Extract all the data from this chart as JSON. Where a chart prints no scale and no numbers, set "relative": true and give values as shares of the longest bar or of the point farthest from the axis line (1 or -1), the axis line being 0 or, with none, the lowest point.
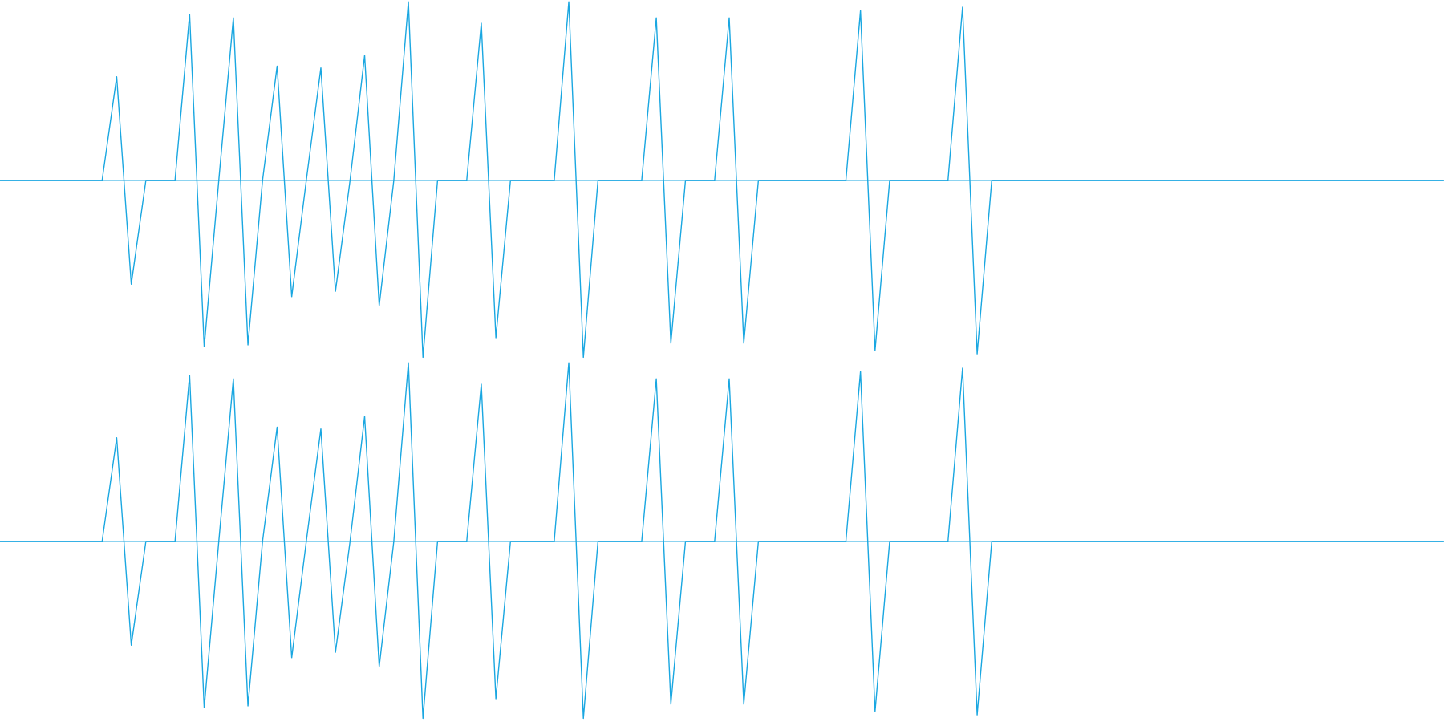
{
  "chart_data": [
    {
      "type": "line",
      "relative": true,
      "color": "#1aa7e1",
      "categories": [
        null,
        null,
        null,
        null,
        null,
        null,
        null,
        null,
        null,
        null,
        null,
        null,
        null,
        null,
        null,
        null,
        null,
        null,
        null,
        null,
        null,
        null,
        null,
        null,
        null,
        null,
        null,
        null,
        null,
        null,
        null,
        null,
        null,
        null,
        null,
        null,
        null,
        null,
        null,
        null,
        null,
        null,
        null,
        null,
        null,
        null,
        null,
        null,
        null,
        null,
        null,
        null,
        null,
        null,
        null,
        null,
        null,
        null,
        null,
        null,
        null,
        null,
        null,
        null,
        null,
        null,
        null,
        null,
        null,
        null,
        null,
        null,
        null,
        null,
        null,
        null,
        null,
        null,
        null,
        null,
        null,
        null,
        null,
        null,
        null,
        null,
        null,
        null,
        null,
        null,
        null,
        null,
        null,
        null,
        null,
        null,
        null,
        null,
        null,
        null
      ],
      "values": [
        0,
        0,
        0,
        0,
        0,
        0,
        0,
        0,
        0.58,
        -0.58,
        0,
        0,
        0,
        0.93,
        -0.93,
        0,
        0.91,
        -0.92,
        0,
        0.64,
        -0.65,
        0,
        0.63,
        -0.62,
        0,
        0.7,
        -0.7,
        0,
        1,
        -0.99,
        0,
        0,
        0,
        0.88,
        -0.88,
        0,
        0,
        0,
        0,
        1,
        -0.99,
        0,
        0,
        0,
        0,
        0.91,
        -0.91,
        0,
        0,
        0,
        0.91,
        -0.91,
        0,
        0,
        0,
        0,
        0,
        0,
        0,
        0.95,
        -0.95,
        0,
        0,
        0,
        0,
        0,
        0.97,
        -0.97,
        0,
        0,
        0,
        0,
        0,
        0,
        0,
        0,
        0,
        0,
        0,
        0,
        0,
        0,
        0,
        0,
        0,
        0,
        0,
        0,
        0,
        0,
        0,
        0,
        0,
        0,
        0,
        0,
        0,
        0,
        0,
        0
      ]
    },
    {
      "type": "line",
      "relative": true,
      "color": "#1aa7e1",
      "categories": [
        null,
        null,
        null,
        null,
        null,
        null,
        null,
        null,
        null,
        null,
        null,
        null,
        null,
        null,
        null,
        null,
        null,
        null,
        null,
        null,
        null,
        null,
        null,
        null,
        null,
        null,
        null,
        null,
        null,
        null,
        null,
        null,
        null,
        null,
        null,
        null,
        null,
        null,
        null,
        null,
        null,
        null,
        null,
        null,
        null,
        null,
        null,
        null,
        null,
        null,
        null,
        null,
        null,
        null,
        null,
        null,
        null,
        null,
        null,
        null,
        null,
        null,
        null,
        null,
        null,
        null,
        null,
        null,
        null,
        null,
        null,
        null,
        null,
        null,
        null,
        null,
        null,
        null,
        null,
        null,
        null,
        null,
        null,
        null,
        null,
        null,
        null,
        null,
        null,
        null,
        null,
        null,
        null,
        null,
        null,
        null,
        null,
        null,
        null,
        null
      ],
      "values": [
        0,
        0,
        0,
        0,
        0,
        0,
        0,
        0,
        0.58,
        -0.58,
        0,
        0,
        0,
        0.93,
        -0.93,
        0,
        0.91,
        -0.92,
        0,
        0.64,
        -0.65,
        0,
        0.63,
        -0.62,
        0,
        0.7,
        -0.7,
        0,
        1,
        -0.99,
        0,
        0,
        0,
        0.88,
        -0.88,
        0,
        0,
        0,
        0,
        1,
        -0.99,
        0,
        0,
        0,
        0,
        0.91,
        -0.91,
        0,
        0,
        0,
        0.91,
        -0.91,
        0,
        0,
        0,
        0,
        0,
        0,
        0,
        0.95,
        -0.95,
        0,
        0,
        0,
        0,
        0,
        0.97,
        -0.97,
        0,
        0,
        0,
        0,
        0,
        0,
        0,
        0,
        0,
        0,
        0,
        0,
        0,
        0,
        0,
        0,
        0,
        0,
        0,
        0,
        0,
        0,
        0,
        0,
        0,
        0,
        0,
        0,
        0,
        0,
        0,
        0
      ]
    }
  ]
}
